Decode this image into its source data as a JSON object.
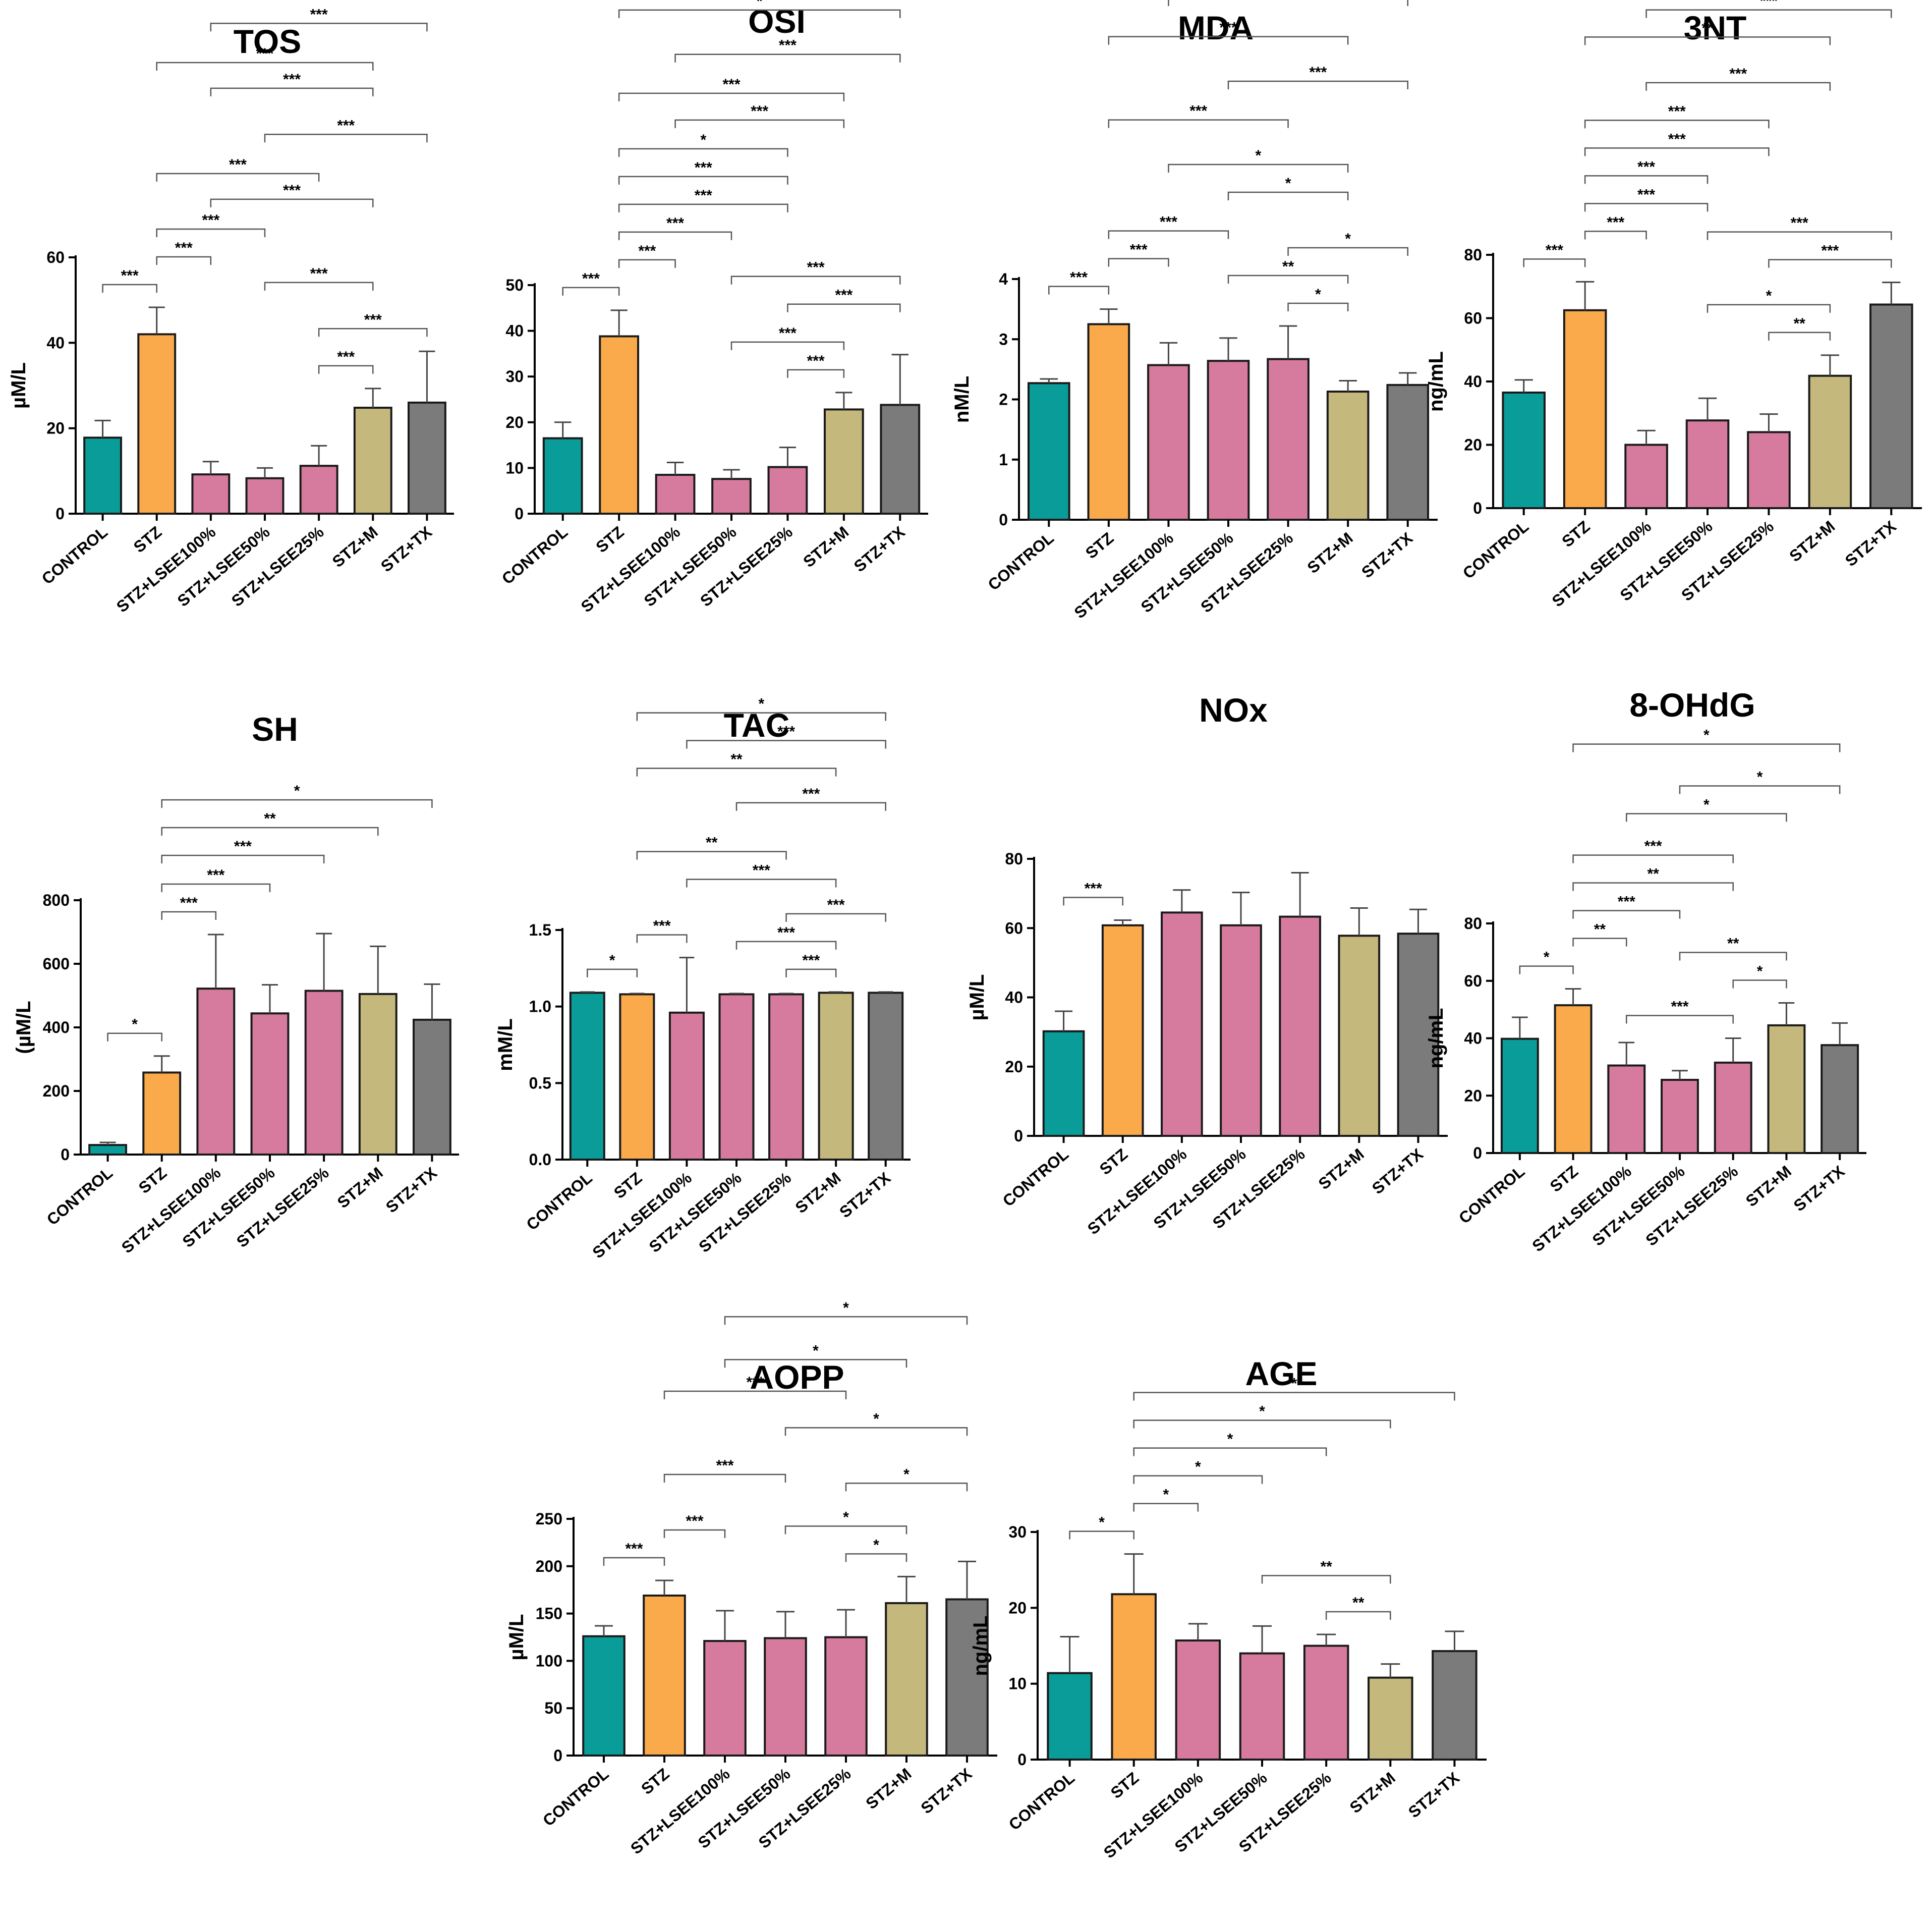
{
  "figure": {
    "description": "Oxidative stress marker panels"
  },
  "groups": [
    "CONTROL",
    "STZ",
    "STZ+LSEE100%",
    "STZ+LSEE50%",
    "STZ+LSEE25%",
    "STZ+M",
    "STZ+TX"
  ],
  "colors": [
    "#0a9c98",
    "#fbaa4b",
    "#d67b9e",
    "#d67b9e",
    "#d67b9e",
    "#c4b87c",
    "#7b7b7b"
  ],
  "chart_data": [
    {
      "type": "bar",
      "title": "TOS",
      "ylabel": "µM/L",
      "ylim": [
        0,
        60
      ],
      "yticks": [
        0,
        20,
        40,
        60
      ],
      "categories": [
        "CONTROL",
        "STZ",
        "STZ+LSEE100%",
        "STZ+LSEE50%",
        "STZ+LSEE25%",
        "STZ+M",
        "STZ+TX"
      ],
      "values": [
        17.8,
        42,
        9.2,
        8.3,
        11.2,
        24.8,
        26
      ],
      "errors": [
        4,
        6.3,
        3,
        2.4,
        4.7,
        4.5,
        12
      ],
      "significance": [
        {
          "from": 0,
          "to": 1,
          "label": "***"
        },
        {
          "from": 1,
          "to": 2,
          "label": "***"
        },
        {
          "from": 1,
          "to": 3,
          "label": "***"
        },
        {
          "from": 2,
          "to": 5,
          "label": "***"
        },
        {
          "from": 1,
          "to": 4,
          "label": "***"
        },
        {
          "from": 3,
          "to": 6,
          "label": "***"
        },
        {
          "from": 1,
          "to": 5,
          "label": "***"
        },
        {
          "from": 2,
          "to": 6,
          "label": "***"
        },
        {
          "from": 1,
          "to": 6,
          "label": "*"
        },
        {
          "from": 4,
          "to": 6,
          "label": "***"
        },
        {
          "from": 4,
          "to": 5,
          "label": "***"
        },
        {
          "from": 3,
          "to": 5,
          "label": "***"
        },
        {
          "from": 2,
          "to": 5,
          "label": "***"
        }
      ]
    },
    {
      "type": "bar",
      "title": "OSI",
      "ylabel": "",
      "ylim": [
        0,
        50
      ],
      "yticks": [
        0,
        10,
        20,
        30,
        40,
        50
      ],
      "categories": [
        "CONTROL",
        "STZ",
        "STZ+LSEE100%",
        "STZ+LSEE50%",
        "STZ+LSEE25%",
        "STZ+M",
        "STZ+TX"
      ],
      "values": [
        16.5,
        38.8,
        8.5,
        7.6,
        10.2,
        22.8,
        23.8
      ],
      "errors": [
        3.5,
        5.7,
        2.7,
        2,
        4.3,
        3.7,
        11
      ],
      "significance": [
        {
          "from": 0,
          "to": 1,
          "label": "***"
        },
        {
          "from": 1,
          "to": 2,
          "label": "***"
        },
        {
          "from": 1,
          "to": 3,
          "label": "***"
        },
        {
          "from": 4,
          "to": 5,
          "label": "***"
        },
        {
          "from": 3,
          "to": 5,
          "label": "***"
        },
        {
          "from": 1,
          "to": 4,
          "label": "***"
        },
        {
          "from": 3,
          "to": 6,
          "label": "***"
        },
        {
          "from": 1,
          "to": 4,
          "label": "***"
        },
        {
          "from": 1,
          "to": 4,
          "label": "*"
        },
        {
          "from": 4,
          "to": 6,
          "label": "***"
        },
        {
          "from": 2,
          "to": 5,
          "label": "***"
        },
        {
          "from": 1,
          "to": 5,
          "label": "***"
        },
        {
          "from": 2,
          "to": 6,
          "label": "***"
        },
        {
          "from": 1,
          "to": 6,
          "label": "*"
        }
      ]
    },
    {
      "type": "bar",
      "title": "MDA",
      "ylabel": "nM/L",
      "ylim": [
        0,
        4
      ],
      "yticks": [
        0,
        1,
        2,
        3,
        4
      ],
      "categories": [
        "CONTROL",
        "STZ",
        "STZ+LSEE100%",
        "STZ+LSEE50%",
        "STZ+LSEE25%",
        "STZ+M",
        "STZ+TX"
      ],
      "values": [
        2.27,
        3.25,
        2.57,
        2.64,
        2.67,
        2.13,
        2.24
      ],
      "errors": [
        0.07,
        0.25,
        0.37,
        0.38,
        0.55,
        0.18,
        0.2
      ],
      "significance": [
        {
          "from": 0,
          "to": 1,
          "label": "***"
        },
        {
          "from": 1,
          "to": 2,
          "label": "***"
        },
        {
          "from": 4,
          "to": 5,
          "label": "*"
        },
        {
          "from": 3,
          "to": 5,
          "label": "**"
        },
        {
          "from": 2,
          "to": 5,
          "label": "*"
        },
        {
          "from": 1,
          "to": 4,
          "label": "***"
        },
        {
          "from": 1,
          "to": 3,
          "label": "***"
        },
        {
          "from": 3,
          "to": 5,
          "label": "*"
        },
        {
          "from": 1,
          "to": 5,
          "label": "***"
        },
        {
          "from": 1,
          "to": 6,
          "label": "***"
        },
        {
          "from": 2,
          "to": 6,
          "label": "*"
        },
        {
          "from": 3,
          "to": 6,
          "label": "***"
        },
        {
          "from": 4,
          "to": 6,
          "label": "*"
        }
      ]
    },
    {
      "type": "bar",
      "title": "3NT",
      "ylabel": "ng/mL",
      "ylim": [
        0,
        80
      ],
      "yticks": [
        0,
        20,
        40,
        60,
        80
      ],
      "categories": [
        "CONTROL",
        "STZ",
        "STZ+LSEE100%",
        "STZ+LSEE50%",
        "STZ+LSEE25%",
        "STZ+M",
        "STZ+TX"
      ],
      "values": [
        36.5,
        62.5,
        20,
        27.7,
        24,
        41.8,
        64.3
      ],
      "errors": [
        4,
        9,
        4.5,
        7,
        5.7,
        6.5,
        7
      ],
      "significance": [
        {
          "from": 0,
          "to": 1,
          "label": "***"
        },
        {
          "from": 1,
          "to": 2,
          "label": "***"
        },
        {
          "from": 4,
          "to": 5,
          "label": "**"
        },
        {
          "from": 1,
          "to": 3,
          "label": "***"
        },
        {
          "from": 1,
          "to": 5,
          "label": "**"
        },
        {
          "from": 1,
          "to": 4,
          "label": "***"
        },
        {
          "from": 3,
          "to": 5,
          "label": "*"
        },
        {
          "from": 1,
          "to": 3,
          "label": "***"
        },
        {
          "from": 1,
          "to": 4,
          "label": "***"
        },
        {
          "from": 4,
          "to": 6,
          "label": "***"
        },
        {
          "from": 2,
          "to": 5,
          "label": "***"
        },
        {
          "from": 3,
          "to": 6,
          "label": "***"
        },
        {
          "from": 2,
          "to": 6,
          "label": "***"
        }
      ]
    },
    {
      "type": "bar",
      "title": "SH",
      "ylabel": "(µM/L",
      "ylim": [
        0,
        800
      ],
      "yticks": [
        0,
        200,
        400,
        600,
        800
      ],
      "categories": [
        "CONTROL",
        "STZ",
        "STZ+LSEE100%",
        "STZ+LSEE50%",
        "STZ+LSEE25%",
        "STZ+M",
        "STZ+TX"
      ],
      "values": [
        30,
        258,
        522,
        444,
        515,
        505,
        424
      ],
      "errors": [
        8,
        52,
        170,
        90,
        180,
        150,
        112
      ],
      "significance": [
        {
          "from": 0,
          "to": 1,
          "label": "*"
        },
        {
          "from": 1,
          "to": 2,
          "label": "***"
        },
        {
          "from": 1,
          "to": 3,
          "label": "***"
        },
        {
          "from": 1,
          "to": 4,
          "label": "***"
        },
        {
          "from": 1,
          "to": 5,
          "label": "**"
        },
        {
          "from": 1,
          "to": 6,
          "label": "*"
        }
      ]
    },
    {
      "type": "bar",
      "title": "TAC",
      "ylabel": "mM/L",
      "ylim": [
        0,
        1.5
      ],
      "yticks": [
        "0.0",
        "0.5",
        "1.0",
        "1.5"
      ],
      "categories": [
        "CONTROL",
        "STZ",
        "STZ+LSEE100%",
        "STZ+LSEE50%",
        "STZ+LSEE25%",
        "STZ+M",
        "STZ+TX"
      ],
      "values": [
        1.09,
        1.08,
        0.96,
        1.08,
        1.08,
        1.09,
        1.09
      ],
      "errors": [
        0.005,
        0.005,
        0.36,
        0.005,
        0.005,
        0.005,
        0.005
      ],
      "significance": [
        {
          "from": 0,
          "to": 1,
          "label": "*"
        },
        {
          "from": 1,
          "to": 2,
          "label": "***"
        },
        {
          "from": 4,
          "to": 5,
          "label": "***"
        },
        {
          "from": 3,
          "to": 5,
          "label": "***"
        },
        {
          "from": 2,
          "to": 5,
          "label": "***"
        },
        {
          "from": 1,
          "to": 4,
          "label": "**"
        },
        {
          "from": 1,
          "to": 5,
          "label": "**"
        },
        {
          "from": 1,
          "to": 6,
          "label": "*"
        },
        {
          "from": 2,
          "to": 6,
          "label": "***"
        },
        {
          "from": 3,
          "to": 6,
          "label": "***"
        },
        {
          "from": 4,
          "to": 6,
          "label": "***"
        }
      ]
    },
    {
      "type": "bar",
      "title": "NOx",
      "ylabel": "µM/L",
      "ylim": [
        0,
        80
      ],
      "yticks": [
        0,
        20,
        40,
        60,
        80
      ],
      "categories": [
        "CONTROL",
        "STZ",
        "STZ+LSEE100%",
        "STZ+LSEE50%",
        "STZ+LSEE25%",
        "STZ+M",
        "STZ+TX"
      ],
      "values": [
        30.2,
        60.8,
        64.5,
        60.8,
        63.3,
        57.8,
        58.4
      ],
      "errors": [
        5.8,
        1.5,
        6.5,
        9.5,
        12.7,
        8,
        7
      ],
      "significance": [
        {
          "from": 0,
          "to": 1,
          "label": "***"
        }
      ]
    },
    {
      "type": "bar",
      "title": "8-OHdG",
      "ylabel": "ng/mL",
      "ylim": [
        0,
        80
      ],
      "yticks": [
        0,
        20,
        40,
        60,
        80
      ],
      "categories": [
        "CONTROL",
        "STZ",
        "STZ+LSEE100%",
        "STZ+LSEE50%",
        "STZ+LSEE25%",
        "STZ+M",
        "STZ+TX"
      ],
      "values": [
        39.8,
        51.5,
        30.5,
        25.5,
        31.5,
        44.5,
        37.6
      ],
      "errors": [
        7.5,
        5.7,
        8,
        3.2,
        8.5,
        7.8,
        7.7
      ],
      "significance": [
        {
          "from": 0,
          "to": 1,
          "label": "*"
        },
        {
          "from": 1,
          "to": 2,
          "label": "**"
        },
        {
          "from": 4,
          "to": 5,
          "label": "*"
        },
        {
          "from": 1,
          "to": 3,
          "label": "***"
        },
        {
          "from": 1,
          "to": 4,
          "label": "**"
        },
        {
          "from": 3,
          "to": 5,
          "label": "**"
        },
        {
          "from": 1,
          "to": 4,
          "label": "***"
        },
        {
          "from": 2,
          "to": 5,
          "label": "*"
        },
        {
          "from": 2,
          "to": 4,
          "label": "***"
        },
        {
          "from": 3,
          "to": 6,
          "label": "*"
        },
        {
          "from": 1,
          "to": 6,
          "label": "*"
        }
      ]
    },
    {
      "type": "bar",
      "title": "AOPP",
      "ylabel": "µM/L",
      "ylim": [
        0,
        250
      ],
      "yticks": [
        0,
        50,
        100,
        150,
        200,
        250
      ],
      "categories": [
        "CONTROL",
        "STZ",
        "STZ+LSEE100%",
        "STZ+LSEE50%",
        "STZ+LSEE25%",
        "STZ+M",
        "STZ+TX"
      ],
      "values": [
        126,
        169,
        121,
        124,
        125,
        161,
        165
      ],
      "errors": [
        11,
        16,
        32,
        28,
        29,
        28,
        40
      ],
      "significance": [
        {
          "from": 0,
          "to": 1,
          "label": "***"
        },
        {
          "from": 1,
          "to": 2,
          "label": "***"
        },
        {
          "from": 4,
          "to": 5,
          "label": "*"
        },
        {
          "from": 3,
          "to": 5,
          "label": "*"
        },
        {
          "from": 4,
          "to": 6,
          "label": "*"
        },
        {
          "from": 1,
          "to": 3,
          "label": "***"
        },
        {
          "from": 3,
          "to": 6,
          "label": "*"
        },
        {
          "from": 1,
          "to": 4,
          "label": "***"
        },
        {
          "from": 2,
          "to": 5,
          "label": "*"
        },
        {
          "from": 2,
          "to": 6,
          "label": "*"
        }
      ]
    },
    {
      "type": "bar",
      "title": "AGE",
      "ylabel": "ng/mL",
      "ylim": [
        0,
        30
      ],
      "yticks": [
        0,
        10,
        20,
        30
      ],
      "categories": [
        "CONTROL",
        "STZ",
        "STZ+LSEE100%",
        "STZ+LSEE50%",
        "STZ+LSEE25%",
        "STZ+M",
        "STZ+TX"
      ],
      "values": [
        11.4,
        21.8,
        15.7,
        14,
        15,
        10.8,
        14.3
      ],
      "errors": [
        4.8,
        5.3,
        2.2,
        3.6,
        1.5,
        1.8,
        2.6
      ],
      "significance": [
        {
          "from": 0,
          "to": 1,
          "label": "*"
        },
        {
          "from": 1,
          "to": 2,
          "label": "*"
        },
        {
          "from": 4,
          "to": 5,
          "label": "**"
        },
        {
          "from": 3,
          "to": 5,
          "label": "**"
        },
        {
          "from": 1,
          "to": 3,
          "label": "*"
        },
        {
          "from": 1,
          "to": 4,
          "label": "*"
        },
        {
          "from": 1,
          "to": 5,
          "label": "*"
        },
        {
          "from": 1,
          "to": 6,
          "label": "*"
        }
      ]
    }
  ]
}
